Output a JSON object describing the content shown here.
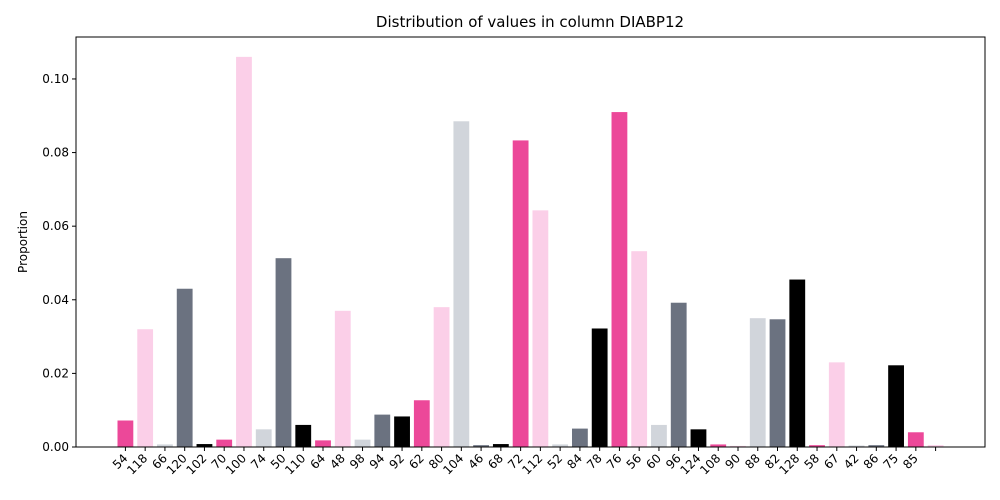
{
  "chart_data": {
    "type": "bar",
    "title": "Distribution of values in column DIABP12",
    "y_label": "Proportion",
    "categories": [
      "54",
      "118",
      "66",
      "120",
      "102",
      "70",
      "100",
      "74",
      "50",
      "110",
      "64",
      "48",
      "98",
      "94",
      "92",
      "62",
      "80",
      "104",
      "46",
      "68",
      "72",
      "112",
      "52",
      "84",
      "78",
      "76",
      "56",
      "60",
      "96",
      "124",
      "108",
      "90",
      "88",
      "82",
      "128",
      "58",
      "67",
      "42",
      "86",
      "75",
      "85",
      null
    ],
    "values": [
      0.0072,
      0.032,
      0.0007,
      0.043,
      0.0008,
      0.002,
      0.106,
      0.0048,
      0.0513,
      0.006,
      0.0018,
      0.037,
      0.002,
      0.0088,
      0.0083,
      0.0127,
      0.038,
      0.0885,
      0.0005,
      0.0008,
      0.0833,
      0.0643,
      0.0007,
      0.005,
      0.0322,
      0.091,
      0.0532,
      0.006,
      0.0392,
      0.0048,
      0.0007,
      0.0003,
      0.035,
      0.0347,
      0.0455,
      0.0005,
      0.023,
      0.0004,
      0.0005,
      0.0222,
      0.004,
      0.0005
    ],
    "colors": [
      "#ec4899",
      "#fbcfe8",
      "#d1d5db",
      "#6b7280",
      "#000000"
    ],
    "ylim": [
      0,
      0.1114
    ],
    "yticks": [
      {
        "value": 0,
        "label": "0.00"
      },
      {
        "value": 0.02,
        "label": "0.02"
      },
      {
        "value": 0.04,
        "label": "0.04"
      },
      {
        "value": 0.06,
        "label": "0.06"
      },
      {
        "value": 0.08,
        "label": "0.08"
      },
      {
        "value": 0.1,
        "label": "0.10"
      }
    ],
    "grid": false
  }
}
